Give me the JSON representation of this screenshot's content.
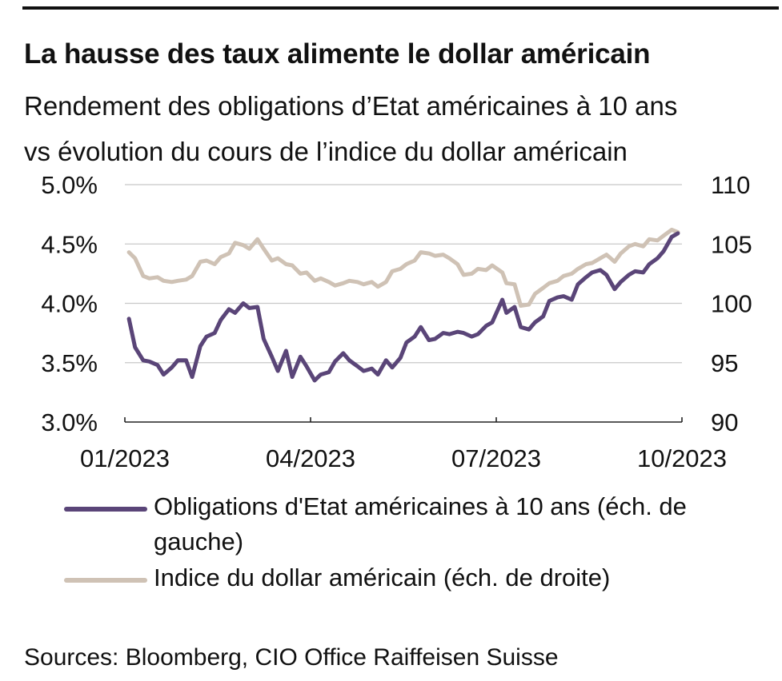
{
  "title": "La hausse des taux alimente le dollar américain",
  "subtitle_line1": "Rendement des obligations d’Etat américaines à 10 ans",
  "subtitle_line2": "vs évolution du cours de l’indice du dollar américain",
  "source": "Sources: Bloomberg, CIO Office Raiffeisen Suisse",
  "colors": {
    "yield": "#5a4578",
    "dollar": "#cfc2b5",
    "grid": "#c8c8c8",
    "axis": "#222222"
  },
  "legend": [
    {
      "label": "Obligations d'Etat américaines à 10 ans (éch. de gauche)",
      "color": "#5a4578"
    },
    {
      "label": "Indice du dollar américain (éch. de droite)",
      "color": "#cfc2b5"
    }
  ],
  "chart_data": {
    "type": "line",
    "title": "La hausse des taux alimente le dollar américain",
    "x_ticks": [
      "01/2023",
      "04/2023",
      "07/2023",
      "10/2023"
    ],
    "xlim": [
      "2023-01-01",
      "2023-10-01"
    ],
    "y_left": {
      "lim": [
        3.0,
        5.0
      ],
      "ticks": [
        "3.0%",
        "3.5%",
        "4.0%",
        "4.5%",
        "5.0%"
      ]
    },
    "y_right": {
      "lim": [
        90,
        110
      ],
      "ticks": [
        "90",
        "95",
        "100",
        "105",
        "110"
      ]
    },
    "grid": "horizontal",
    "legend_position": "bottom",
    "series": [
      {
        "name": "Obligations d'Etat américaines à 10 ans (éch. de gauche)",
        "axis": "left",
        "x": [
          "2023-01-03",
          "2023-01-06",
          "2023-01-10",
          "2023-01-13",
          "2023-01-17",
          "2023-01-20",
          "2023-01-24",
          "2023-01-27",
          "2023-01-31",
          "2023-02-03",
          "2023-02-07",
          "2023-02-10",
          "2023-02-14",
          "2023-02-17",
          "2023-02-21",
          "2023-02-24",
          "2023-02-28",
          "2023-03-03",
          "2023-03-07",
          "2023-03-10",
          "2023-03-14",
          "2023-03-17",
          "2023-03-21",
          "2023-03-24",
          "2023-03-28",
          "2023-03-31",
          "2023-04-04",
          "2023-04-07",
          "2023-04-11",
          "2023-04-14",
          "2023-04-18",
          "2023-04-21",
          "2023-04-25",
          "2023-04-28",
          "2023-05-02",
          "2023-05-05",
          "2023-05-09",
          "2023-05-12",
          "2023-05-16",
          "2023-05-19",
          "2023-05-23",
          "2023-05-26",
          "2023-05-30",
          "2023-06-02",
          "2023-06-06",
          "2023-06-09",
          "2023-06-13",
          "2023-06-16",
          "2023-06-20",
          "2023-06-23",
          "2023-06-27",
          "2023-06-30",
          "2023-07-05",
          "2023-07-07",
          "2023-07-11",
          "2023-07-14",
          "2023-07-18",
          "2023-07-21",
          "2023-07-25",
          "2023-07-28",
          "2023-08-01",
          "2023-08-04",
          "2023-08-08",
          "2023-08-11",
          "2023-08-15",
          "2023-08-18",
          "2023-08-22",
          "2023-08-25",
          "2023-08-29",
          "2023-09-01",
          "2023-09-05",
          "2023-09-08",
          "2023-09-12",
          "2023-09-15",
          "2023-09-19",
          "2023-09-22",
          "2023-09-26",
          "2023-09-29"
        ],
        "values": [
          3.87,
          3.63,
          3.52,
          3.51,
          3.48,
          3.4,
          3.46,
          3.52,
          3.52,
          3.38,
          3.64,
          3.72,
          3.75,
          3.86,
          3.95,
          3.92,
          4.0,
          3.96,
          3.97,
          3.7,
          3.55,
          3.43,
          3.6,
          3.38,
          3.55,
          3.47,
          3.35,
          3.4,
          3.42,
          3.51,
          3.58,
          3.52,
          3.47,
          3.43,
          3.45,
          3.4,
          3.52,
          3.46,
          3.54,
          3.67,
          3.72,
          3.8,
          3.69,
          3.7,
          3.75,
          3.74,
          3.76,
          3.75,
          3.72,
          3.74,
          3.81,
          3.84,
          4.03,
          3.92,
          3.97,
          3.8,
          3.78,
          3.84,
          3.89,
          4.02,
          4.05,
          4.06,
          4.03,
          4.16,
          4.22,
          4.26,
          4.28,
          4.24,
          4.12,
          4.18,
          4.24,
          4.27,
          4.26,
          4.33,
          4.38,
          4.44,
          4.56,
          4.59
        ]
      },
      {
        "name": "Indice du dollar américain (éch. de droite)",
        "axis": "right",
        "x": [
          "2023-01-03",
          "2023-01-06",
          "2023-01-10",
          "2023-01-13",
          "2023-01-17",
          "2023-01-20",
          "2023-01-24",
          "2023-01-27",
          "2023-01-31",
          "2023-02-03",
          "2023-02-07",
          "2023-02-10",
          "2023-02-14",
          "2023-02-17",
          "2023-02-21",
          "2023-02-24",
          "2023-02-28",
          "2023-03-03",
          "2023-03-07",
          "2023-03-10",
          "2023-03-14",
          "2023-03-17",
          "2023-03-21",
          "2023-03-24",
          "2023-03-28",
          "2023-03-31",
          "2023-04-04",
          "2023-04-07",
          "2023-04-11",
          "2023-04-14",
          "2023-04-18",
          "2023-04-21",
          "2023-04-25",
          "2023-04-28",
          "2023-05-02",
          "2023-05-05",
          "2023-05-09",
          "2023-05-12",
          "2023-05-16",
          "2023-05-19",
          "2023-05-23",
          "2023-05-26",
          "2023-05-30",
          "2023-06-02",
          "2023-06-06",
          "2023-06-09",
          "2023-06-13",
          "2023-06-16",
          "2023-06-20",
          "2023-06-23",
          "2023-06-27",
          "2023-06-30",
          "2023-07-05",
          "2023-07-07",
          "2023-07-11",
          "2023-07-14",
          "2023-07-18",
          "2023-07-21",
          "2023-07-25",
          "2023-07-28",
          "2023-08-01",
          "2023-08-04",
          "2023-08-08",
          "2023-08-11",
          "2023-08-15",
          "2023-08-18",
          "2023-08-22",
          "2023-08-25",
          "2023-08-29",
          "2023-09-01",
          "2023-09-05",
          "2023-09-08",
          "2023-09-12",
          "2023-09-15",
          "2023-09-19",
          "2023-09-22",
          "2023-09-26",
          "2023-09-29"
        ],
        "values": [
          104.3,
          103.8,
          102.3,
          102.1,
          102.2,
          101.9,
          101.8,
          101.9,
          102.0,
          102.3,
          103.5,
          103.6,
          103.3,
          103.9,
          104.2,
          105.1,
          104.9,
          104.6,
          105.4,
          104.6,
          103.6,
          103.8,
          103.3,
          103.2,
          102.5,
          102.6,
          101.9,
          102.1,
          101.8,
          101.5,
          101.7,
          101.9,
          101.8,
          101.6,
          101.8,
          101.4,
          101.8,
          102.7,
          102.9,
          103.3,
          103.6,
          104.3,
          104.2,
          104.0,
          104.1,
          103.8,
          103.3,
          102.4,
          102.5,
          102.9,
          102.8,
          103.2,
          102.6,
          101.7,
          101.6,
          99.8,
          99.9,
          100.8,
          101.3,
          101.7,
          101.9,
          102.3,
          102.5,
          102.9,
          103.3,
          103.4,
          103.8,
          104.1,
          103.5,
          104.2,
          104.8,
          105.0,
          104.8,
          105.4,
          105.3,
          105.7,
          106.2,
          106.0
        ]
      }
    ]
  }
}
